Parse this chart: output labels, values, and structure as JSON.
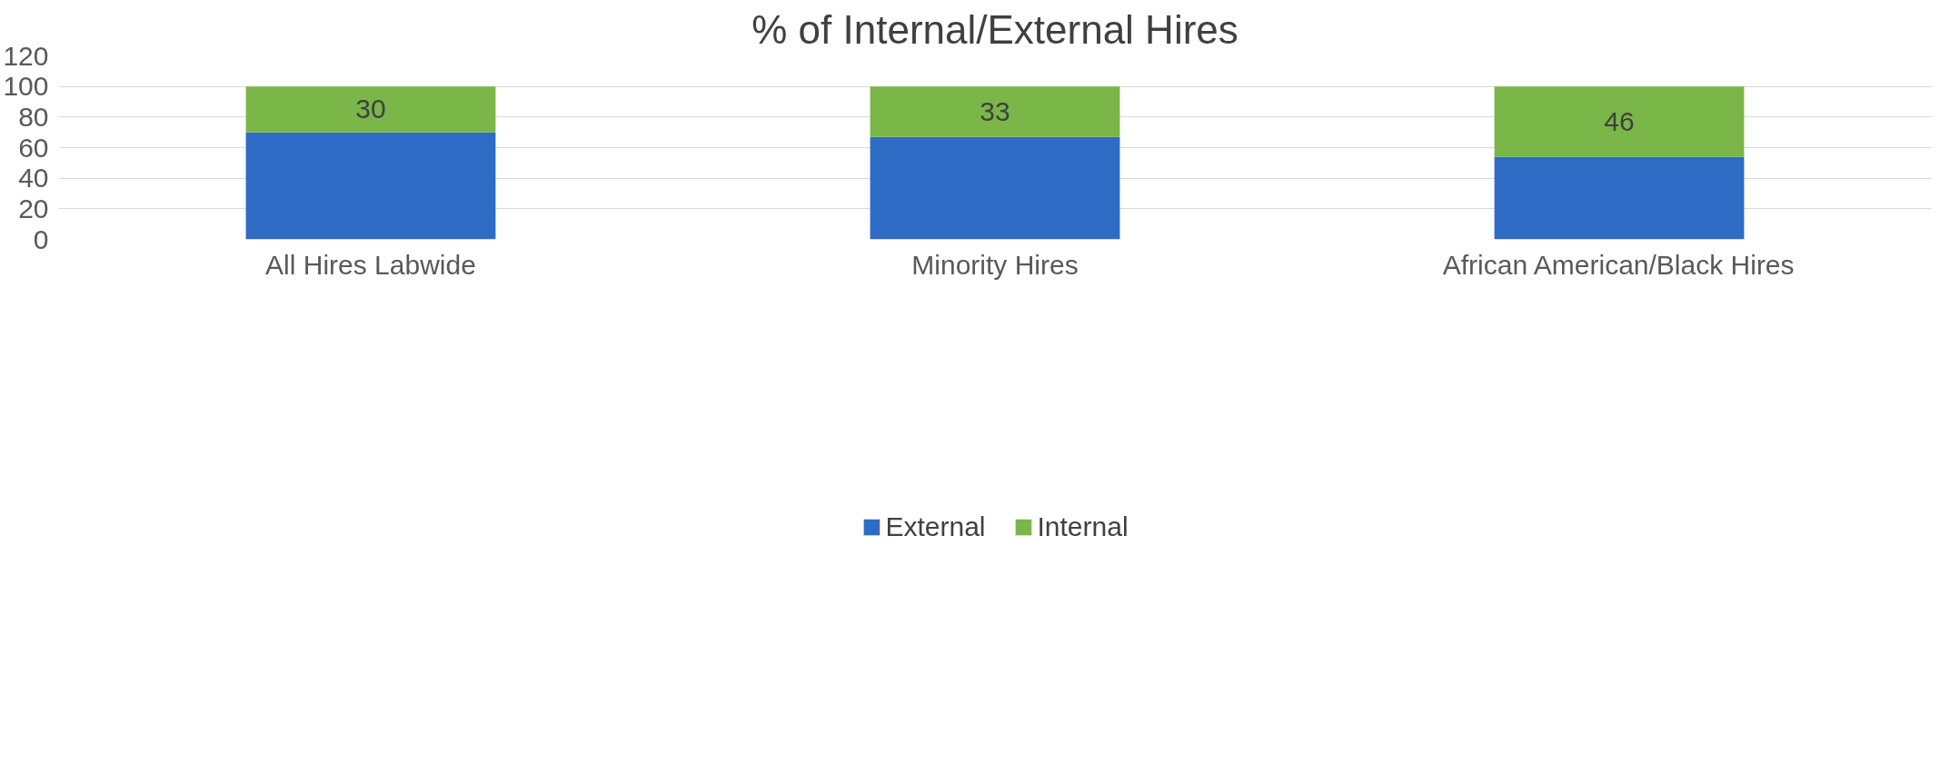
{
  "chart_data": {
    "type": "bar",
    "title": "% of Internal/External Hires",
    "categories": [
      "All Hires Labwide",
      "Minority Hires",
      "African American/Black Hires"
    ],
    "stacked": true,
    "series": [
      {
        "name": "External",
        "color": "#2e6bc4",
        "values": [
          70,
          67,
          54
        ]
      },
      {
        "name": "Internal",
        "color": "#7ab648",
        "values": [
          30,
          33,
          46
        ],
        "value_labels": [
          "30",
          "33",
          "46"
        ]
      }
    ],
    "ylim": [
      0,
      120
    ],
    "yticks": [
      0,
      20,
      40,
      60,
      80,
      100,
      120
    ],
    "grid": "y",
    "legend": "bottom"
  }
}
